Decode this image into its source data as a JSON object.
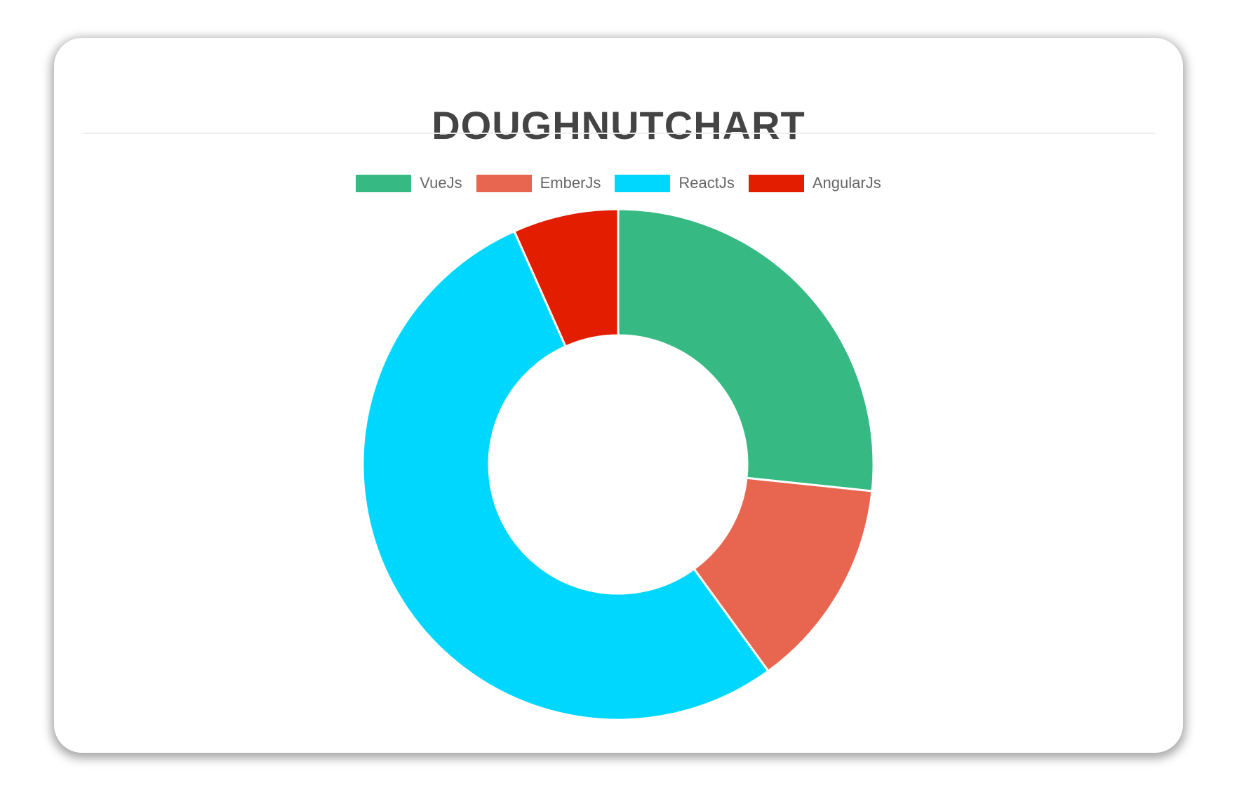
{
  "chart_data": {
    "type": "doughnut",
    "title": "DOUGHNUTCHART",
    "categories": [
      "VueJs",
      "EmberJs",
      "ReactJs",
      "AngularJs"
    ],
    "values": [
      40,
      20,
      80,
      10
    ],
    "colors": [
      "#36b983",
      "#e8664f",
      "#00d7ff",
      "#e21d00"
    ],
    "legend": "top"
  }
}
